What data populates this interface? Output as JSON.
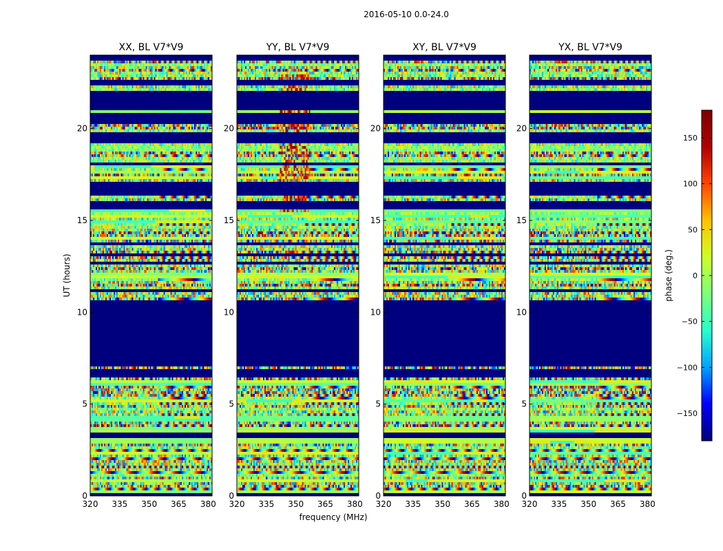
{
  "suptitle": "2016-05-10 0.0-24.0",
  "chart_data": {
    "type": "heatmap",
    "title": "2016-05-10 0.0-24.0",
    "panels": [
      {
        "title": "XX, BL V7*V9"
      },
      {
        "title": "YY, BL V7*V9"
      },
      {
        "title": "XY, BL V7*V9"
      },
      {
        "title": "YX, BL V7*V9"
      }
    ],
    "xlabel": "frequency (MHz)",
    "ylabel": "UT (hours)",
    "xlim": [
      320,
      382
    ],
    "ylim": [
      0,
      24
    ],
    "xticks": [
      320,
      335,
      350,
      365,
      380
    ],
    "yticks": [
      0,
      5,
      10,
      15,
      20
    ],
    "colorbar": {
      "label": "phase (deg.)",
      "range": [
        -180,
        180
      ],
      "ticks": [
        -150,
        -100,
        -50,
        0,
        50,
        100,
        150
      ],
      "tick_labels": [
        "−150",
        "−100",
        "−50",
        "0",
        "50",
        "100",
        "150"
      ]
    },
    "colormap": [
      "#00007f",
      "#0000ff",
      "#00a4ff",
      "#29ffce",
      "#7dff7a",
      "#ceff29",
      "#ffc400",
      "#ff4800",
      "#b20000",
      "#7f0000"
    ],
    "flagged_intervals_hours": [
      [
        0,
        0.2
      ],
      [
        3.2,
        3.4
      ],
      [
        6.4,
        6.9
      ],
      [
        7.1,
        10.6
      ],
      [
        15.6,
        16.1
      ],
      [
        16.3,
        16.9
      ],
      [
        19.2,
        19.8
      ],
      [
        20.3,
        20.8
      ],
      [
        21.0,
        22.0
      ],
      [
        22.3,
        22.6
      ],
      [
        23.7,
        24.0
      ]
    ]
  }
}
